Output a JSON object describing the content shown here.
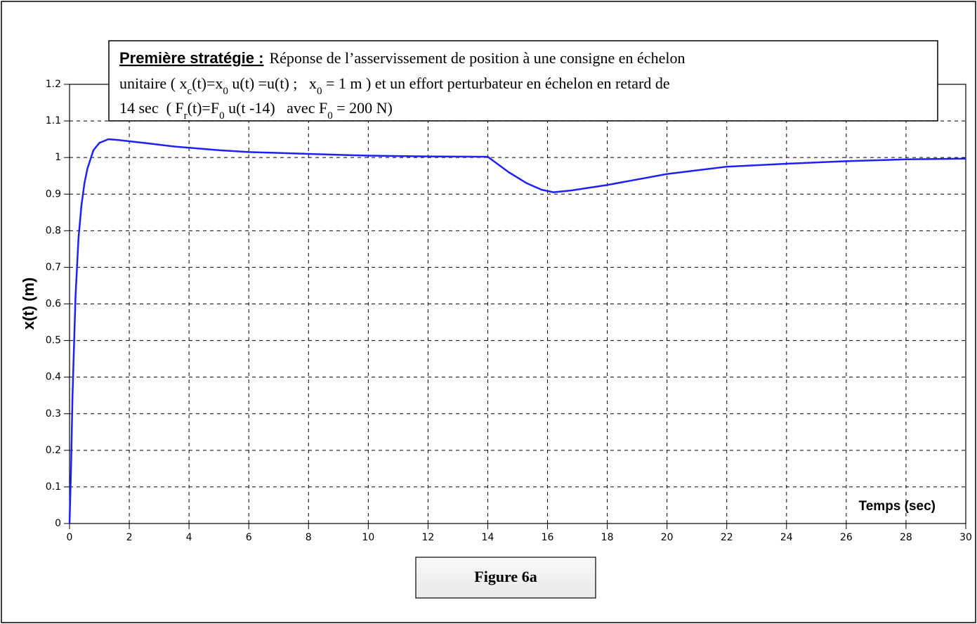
{
  "chart_data": {
    "type": "line",
    "title_label": "Première stratégie :",
    "title_lines": [
      [
        "Réponse de l’asservissement de position à une consigne en échelon"
      ],
      [
        "unitaire ( x",
        {
          "sub": "c"
        },
        "(t)=x",
        {
          "sub": "0"
        },
        " u(t) =u(t) ;   x",
        {
          "sub": "0"
        },
        " = 1 m ) et un effort perturbateur en échelon en retard de"
      ],
      [
        "14 sec  ( F",
        {
          "sub": "r"
        },
        "(t)=F",
        {
          "sub": "0"
        },
        " u(t -14)   avec F",
        {
          "sub": "0"
        },
        " = 200 N)"
      ]
    ],
    "figure_label": "Figure 6a",
    "xlabel": "Temps (sec)",
    "ylabel": "x(t)  (m)",
    "color": "#1f1fff",
    "grid": true,
    "xlim": [
      0,
      30
    ],
    "ylim": [
      0,
      1.2
    ],
    "xticks": [
      0,
      2,
      4,
      6,
      8,
      10,
      12,
      14,
      16,
      18,
      20,
      22,
      24,
      26,
      28,
      30
    ],
    "yticks": [
      0,
      0.1,
      0.2,
      0.3,
      0.4,
      0.5,
      0.6,
      0.7,
      0.8,
      0.9,
      1,
      1.1,
      1.2
    ],
    "x": [
      0,
      0.05,
      0.1,
      0.2,
      0.3,
      0.4,
      0.5,
      0.6,
      0.8,
      1.0,
      1.3,
      1.6,
      2.5,
      3.5,
      5,
      6,
      8,
      10,
      12,
      14,
      14.7,
      15.3,
      15.8,
      16.2,
      16.8,
      18,
      19,
      20,
      21,
      22,
      24,
      26,
      28,
      30
    ],
    "values": [
      0,
      0.15,
      0.35,
      0.62,
      0.78,
      0.87,
      0.93,
      0.97,
      1.02,
      1.04,
      1.05,
      1.048,
      1.04,
      1.03,
      1.02,
      1.015,
      1.01,
      1.005,
      1.003,
      1.002,
      0.96,
      0.93,
      0.912,
      0.905,
      0.91,
      0.925,
      0.94,
      0.955,
      0.965,
      0.975,
      0.983,
      0.99,
      0.995,
      0.997
    ]
  }
}
